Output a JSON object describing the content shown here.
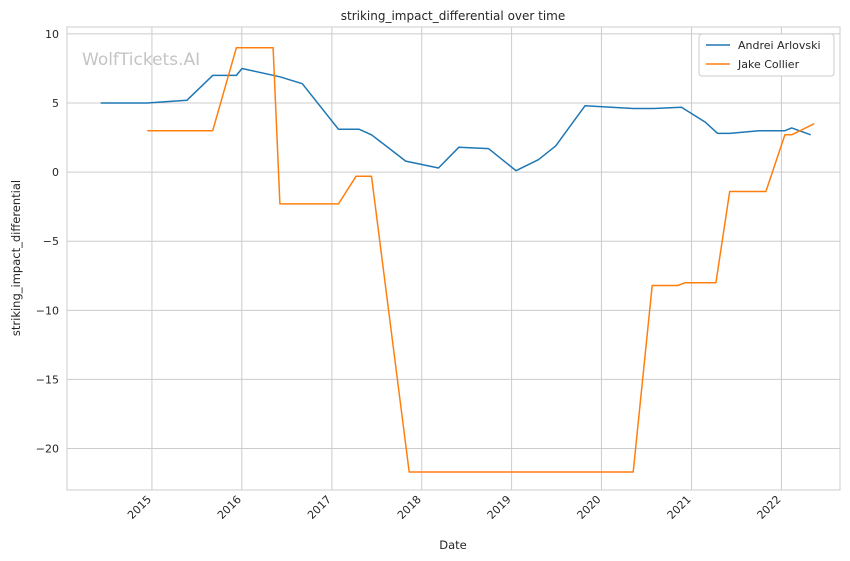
{
  "chart_data": {
    "type": "line",
    "title": "striking_impact_differential over time",
    "xlabel": "Date",
    "ylabel": "striking_impact_differential",
    "watermark": "WolfTickets.AI",
    "x_ticks": [
      "2015",
      "2016",
      "2017",
      "2018",
      "2019",
      "2020",
      "2021",
      "2022"
    ],
    "y_ticks": [
      10,
      5,
      0,
      -5,
      -10,
      -15,
      -20
    ],
    "xlim": [
      "2014-01-21",
      "2022-08-27"
    ],
    "ylim": [
      -23.0,
      10.5
    ],
    "grid": true,
    "legend": "top-right",
    "series": [
      {
        "name": "Andrei Arlovski",
        "color": "#1f77b4",
        "points": [
          [
            "2014-06-07",
            5.0
          ],
          [
            "2014-12-13",
            5.0
          ],
          [
            "2015-05-23",
            5.2
          ],
          [
            "2015-09-05",
            7.0
          ],
          [
            "2015-12-10",
            7.0
          ],
          [
            "2016-01-02",
            7.5
          ],
          [
            "2016-06-04",
            6.9
          ],
          [
            "2016-09-03",
            6.4
          ],
          [
            "2017-01-28",
            3.1
          ],
          [
            "2017-04-22",
            3.1
          ],
          [
            "2017-06-11",
            2.7
          ],
          [
            "2017-10-28",
            0.8
          ],
          [
            "2018-03-10",
            0.3
          ],
          [
            "2018-06-01",
            1.8
          ],
          [
            "2018-09-29",
            1.7
          ],
          [
            "2019-01-19",
            0.1
          ],
          [
            "2019-04-20",
            0.9
          ],
          [
            "2019-06-29",
            1.9
          ],
          [
            "2019-10-26",
            4.8
          ],
          [
            "2020-05-09",
            4.6
          ],
          [
            "2020-08-01",
            4.6
          ],
          [
            "2020-11-21",
            4.7
          ],
          [
            "2021-02-27",
            3.6
          ],
          [
            "2021-04-17",
            2.8
          ],
          [
            "2021-06-05",
            2.8
          ],
          [
            "2021-10-02",
            3.0
          ],
          [
            "2022-01-15",
            3.0
          ],
          [
            "2022-02-12",
            3.2
          ],
          [
            "2022-04-30",
            2.7
          ]
        ]
      },
      {
        "name": "Jake Collier",
        "color": "#ff7f0e",
        "points": [
          [
            "2014-12-13",
            3.0
          ],
          [
            "2015-09-05",
            3.0
          ],
          [
            "2015-12-10",
            9.0
          ],
          [
            "2016-05-07",
            9.0
          ],
          [
            "2016-06-04",
            -2.3
          ],
          [
            "2017-01-28",
            -2.3
          ],
          [
            "2017-04-09",
            -0.3
          ],
          [
            "2017-06-11",
            -0.3
          ],
          [
            "2017-11-11",
            -21.7
          ],
          [
            "2020-05-09",
            -21.7
          ],
          [
            "2020-07-25",
            -8.2
          ],
          [
            "2020-11-07",
            -8.2
          ],
          [
            "2020-12-05",
            -8.0
          ],
          [
            "2021-04-10",
            -8.0
          ],
          [
            "2021-06-05",
            -1.4
          ],
          [
            "2021-10-30",
            -1.4
          ],
          [
            "2022-01-15",
            2.7
          ],
          [
            "2022-02-12",
            2.7
          ],
          [
            "2022-05-14",
            3.5
          ]
        ]
      }
    ]
  }
}
